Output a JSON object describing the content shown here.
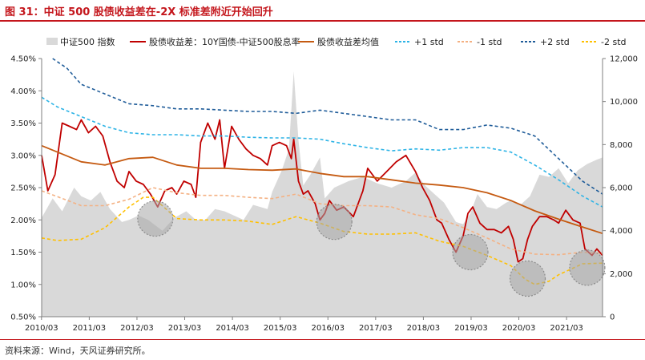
{
  "figure": {
    "title": "图 31：中证 500 股债收益差在-2X 标准差附近开始回升",
    "source": "资料来源：Wind，天风证券研究所。"
  },
  "chart_data": {
    "type": "line",
    "title": "中证 500 股债收益差在-2X 标准差附近开始回升",
    "x_ticks": [
      "2010/03",
      "2011/03",
      "2012/03",
      "2013/03",
      "2014/03",
      "2015/03",
      "2016/03",
      "2017/03",
      "2018/03",
      "2019/03",
      "2020/03",
      "2021/03"
    ],
    "x_range": [
      2010.17,
      2021.92
    ],
    "y_left": {
      "range": [
        0.5,
        4.5
      ],
      "tick_labels": [
        "0.50%",
        "1.00%",
        "1.50%",
        "2.00%",
        "2.50%",
        "3.00%",
        "3.50%",
        "4.00%",
        "4.50%"
      ],
      "tick_values": [
        0.5,
        1.0,
        1.5,
        2.0,
        2.5,
        3.0,
        3.5,
        4.0,
        4.5
      ]
    },
    "y_right": {
      "range": [
        0,
        12000
      ],
      "tick_labels": [
        "0",
        "2,000",
        "4,000",
        "6,000",
        "8,000",
        "10,000",
        "12,000"
      ],
      "tick_values": [
        0,
        2000,
        4000,
        6000,
        8000,
        10000,
        12000
      ]
    },
    "legend": [
      "中证500 指数",
      "股债收益差：10Y国债-中证500股息率",
      "股债收益差均值",
      "+1 std",
      "-1 std",
      "+2 std",
      "-2 std"
    ],
    "colors": {
      "index_area": "#d9d9d9",
      "spread": "#c00000",
      "mean": "#c55a11",
      "plus1": "#2eb4e6",
      "minus1": "#f4b183",
      "plus2": "#1f5c99",
      "minus2": "#ffc000",
      "axis": "#7f7f7f",
      "title": "#c4161c",
      "highlight": "#a6a6a6"
    },
    "series": [
      {
        "name": "中证500 指数",
        "axis": "right",
        "kind": "area",
        "x": [
          2010.17,
          2010.4,
          2010.6,
          2010.85,
          2011.0,
          2011.2,
          2011.4,
          2011.6,
          2011.85,
          2012.0,
          2012.2,
          2012.4,
          2012.7,
          2012.95,
          2013.2,
          2013.4,
          2013.6,
          2013.8,
          2014.0,
          2014.2,
          2014.4,
          2014.6,
          2014.9,
          2015.0,
          2015.2,
          2015.35,
          2015.45,
          2015.55,
          2015.65,
          2015.8,
          2016.0,
          2016.1,
          2016.3,
          2016.6,
          2016.9,
          2017.2,
          2017.5,
          2017.8,
          2018.0,
          2018.2,
          2018.4,
          2018.6,
          2018.85,
          2019.0,
          2019.15,
          2019.3,
          2019.5,
          2019.7,
          2019.9,
          2020.0,
          2020.2,
          2020.4,
          2020.6,
          2020.8,
          2021.0,
          2021.2,
          2021.4,
          2021.6,
          2021.8,
          2021.92
        ],
        "values": [
          4600,
          5500,
          4900,
          6000,
          5600,
          5400,
          5800,
          5000,
          4400,
          4500,
          4700,
          4500,
          4000,
          4600,
          4900,
          4500,
          4500,
          5000,
          4900,
          4700,
          4500,
          5200,
          5000,
          5800,
          6800,
          7800,
          11400,
          8200,
          6100,
          6600,
          7400,
          5500,
          6000,
          6300,
          6500,
          6200,
          6000,
          6300,
          6700,
          6100,
          5700,
          5300,
          4400,
          4300,
          4800,
          5700,
          5100,
          5000,
          5300,
          5400,
          5200,
          5600,
          6600,
          6500,
          6900,
          6200,
          6800,
          7100,
          7300,
          7400
        ]
      },
      {
        "name": "股债收益差：10Y国债-中证500股息率",
        "axis": "left",
        "kind": "line",
        "x": [
          2010.17,
          2010.3,
          2010.45,
          2010.6,
          2010.75,
          2010.9,
          2011.0,
          2011.15,
          2011.3,
          2011.45,
          2011.6,
          2011.75,
          2011.9,
          2012.0,
          2012.15,
          2012.3,
          2012.45,
          2012.6,
          2012.75,
          2012.9,
          2013.0,
          2013.15,
          2013.3,
          2013.4,
          2013.5,
          2013.65,
          2013.8,
          2013.9,
          2014.0,
          2014.15,
          2014.3,
          2014.45,
          2014.6,
          2014.75,
          2014.9,
          2015.0,
          2015.15,
          2015.3,
          2015.4,
          2015.45,
          2015.55,
          2015.65,
          2015.75,
          2015.9,
          2016.0,
          2016.1,
          2016.2,
          2016.35,
          2016.5,
          2016.7,
          2016.9,
          2017.0,
          2017.2,
          2017.4,
          2017.6,
          2017.8,
          2018.0,
          2018.15,
          2018.3,
          2018.45,
          2018.55,
          2018.7,
          2018.85,
          2019.0,
          2019.1,
          2019.2,
          2019.35,
          2019.5,
          2019.65,
          2019.8,
          2019.95,
          2020.05,
          2020.15,
          2020.25,
          2020.35,
          2020.45,
          2020.6,
          2020.75,
          2020.9,
          2021.0,
          2021.15,
          2021.3,
          2021.45,
          2021.55,
          2021.7,
          2021.8,
          2021.92
        ],
        "values": [
          3.0,
          2.45,
          2.7,
          3.5,
          3.45,
          3.4,
          3.55,
          3.35,
          3.45,
          3.3,
          2.9,
          2.6,
          2.5,
          2.75,
          2.6,
          2.55,
          2.4,
          2.2,
          2.45,
          2.5,
          2.4,
          2.6,
          2.55,
          2.35,
          3.2,
          3.5,
          3.25,
          3.55,
          2.8,
          3.45,
          3.25,
          3.1,
          3.0,
          2.95,
          2.85,
          3.15,
          3.2,
          3.15,
          2.95,
          3.25,
          2.6,
          2.4,
          2.45,
          2.25,
          2.0,
          2.1,
          2.3,
          2.15,
          2.2,
          2.05,
          2.45,
          2.8,
          2.6,
          2.75,
          2.9,
          3.0,
          2.75,
          2.5,
          2.3,
          2.0,
          1.95,
          1.7,
          1.5,
          1.75,
          2.1,
          2.2,
          1.95,
          1.85,
          1.85,
          1.8,
          1.9,
          1.7,
          1.35,
          1.4,
          1.7,
          1.9,
          2.05,
          2.05,
          2.0,
          1.95,
          2.15,
          2.0,
          1.95,
          1.55,
          1.45,
          1.55,
          1.45
        ]
      },
      {
        "name": "股债收益差均值",
        "axis": "left",
        "kind": "line",
        "x": [
          2010.17,
          2010.5,
          2011.0,
          2011.5,
          2012.0,
          2012.5,
          2013.0,
          2013.5,
          2014.0,
          2014.5,
          2015.0,
          2015.5,
          2016.0,
          2016.5,
          2017.0,
          2017.5,
          2018.0,
          2018.5,
          2019.0,
          2019.5,
          2020.0,
          2020.5,
          2021.0,
          2021.5,
          2021.92
        ],
        "values": [
          3.15,
          3.05,
          2.9,
          2.85,
          2.95,
          2.97,
          2.85,
          2.8,
          2.8,
          2.78,
          2.77,
          2.79,
          2.72,
          2.67,
          2.67,
          2.62,
          2.57,
          2.54,
          2.5,
          2.42,
          2.3,
          2.14,
          2.01,
          1.89,
          1.79
        ]
      },
      {
        "name": "+1 std",
        "axis": "left",
        "kind": "line",
        "x": [
          2010.17,
          2010.5,
          2011.0,
          2011.5,
          2012.0,
          2012.5,
          2013.0,
          2013.5,
          2014.0,
          2014.5,
          2015.0,
          2015.5,
          2016.0,
          2016.5,
          2017.0,
          2017.5,
          2018.0,
          2018.5,
          2019.0,
          2019.5,
          2020.0,
          2020.5,
          2021.0,
          2021.5,
          2021.92
        ],
        "values": [
          3.9,
          3.75,
          3.6,
          3.45,
          3.35,
          3.32,
          3.32,
          3.3,
          3.3,
          3.28,
          3.27,
          3.27,
          3.25,
          3.18,
          3.12,
          3.07,
          3.1,
          3.08,
          3.12,
          3.12,
          3.05,
          2.85,
          2.62,
          2.37,
          2.2
        ]
      },
      {
        "name": "-1 std",
        "axis": "left",
        "kind": "line",
        "x": [
          2010.17,
          2010.5,
          2011.0,
          2011.5,
          2012.0,
          2012.5,
          2013.0,
          2013.5,
          2014.0,
          2014.5,
          2015.0,
          2015.5,
          2016.0,
          2016.5,
          2017.0,
          2017.5,
          2018.0,
          2018.5,
          2019.0,
          2019.5,
          2020.0,
          2020.5,
          2021.0,
          2021.5,
          2021.92
        ],
        "values": [
          2.45,
          2.36,
          2.22,
          2.22,
          2.32,
          2.5,
          2.42,
          2.38,
          2.38,
          2.35,
          2.33,
          2.4,
          2.25,
          2.22,
          2.22,
          2.2,
          2.08,
          2.02,
          1.88,
          1.72,
          1.55,
          1.47,
          1.46,
          1.5,
          1.48
        ]
      },
      {
        "name": "+2 std",
        "axis": "left",
        "kind": "line",
        "x": [
          2010.4,
          2010.7,
          2011.0,
          2011.5,
          2012.0,
          2012.5,
          2013.0,
          2013.5,
          2014.0,
          2014.5,
          2015.0,
          2015.5,
          2016.0,
          2016.5,
          2017.0,
          2017.5,
          2018.0,
          2018.5,
          2019.0,
          2019.5,
          2020.0,
          2020.5,
          2021.0,
          2021.5,
          2021.92
        ],
        "values": [
          4.5,
          4.35,
          4.1,
          3.95,
          3.8,
          3.77,
          3.72,
          3.72,
          3.7,
          3.68,
          3.68,
          3.65,
          3.7,
          3.65,
          3.6,
          3.55,
          3.55,
          3.4,
          3.4,
          3.47,
          3.42,
          3.3,
          2.95,
          2.6,
          2.4
        ]
      },
      {
        "name": "-2 std",
        "axis": "left",
        "kind": "line",
        "x": [
          2010.17,
          2010.5,
          2011.0,
          2011.5,
          2012.0,
          2012.3,
          2012.5,
          2013.0,
          2013.5,
          2014.0,
          2014.5,
          2015.0,
          2015.5,
          2016.0,
          2016.5,
          2017.0,
          2017.5,
          2018.0,
          2018.5,
          2019.0,
          2019.5,
          2020.0,
          2020.3,
          2020.5,
          2020.8,
          2021.0,
          2021.5,
          2021.92
        ],
        "values": [
          1.72,
          1.68,
          1.7,
          1.88,
          2.2,
          2.35,
          2.35,
          2.02,
          2.0,
          2.0,
          1.98,
          1.93,
          2.05,
          1.95,
          1.82,
          1.78,
          1.78,
          1.8,
          1.67,
          1.59,
          1.45,
          1.29,
          1.08,
          1.0,
          1.05,
          1.15,
          1.32,
          1.33
        ]
      }
    ],
    "highlights": [
      {
        "x": 2012.55,
        "y": 2.02
      },
      {
        "x": 2016.3,
        "y": 1.97
      },
      {
        "x": 2019.15,
        "y": 1.5
      },
      {
        "x": 2020.35,
        "y": 1.09
      },
      {
        "x": 2021.6,
        "y": 1.26
      }
    ]
  }
}
